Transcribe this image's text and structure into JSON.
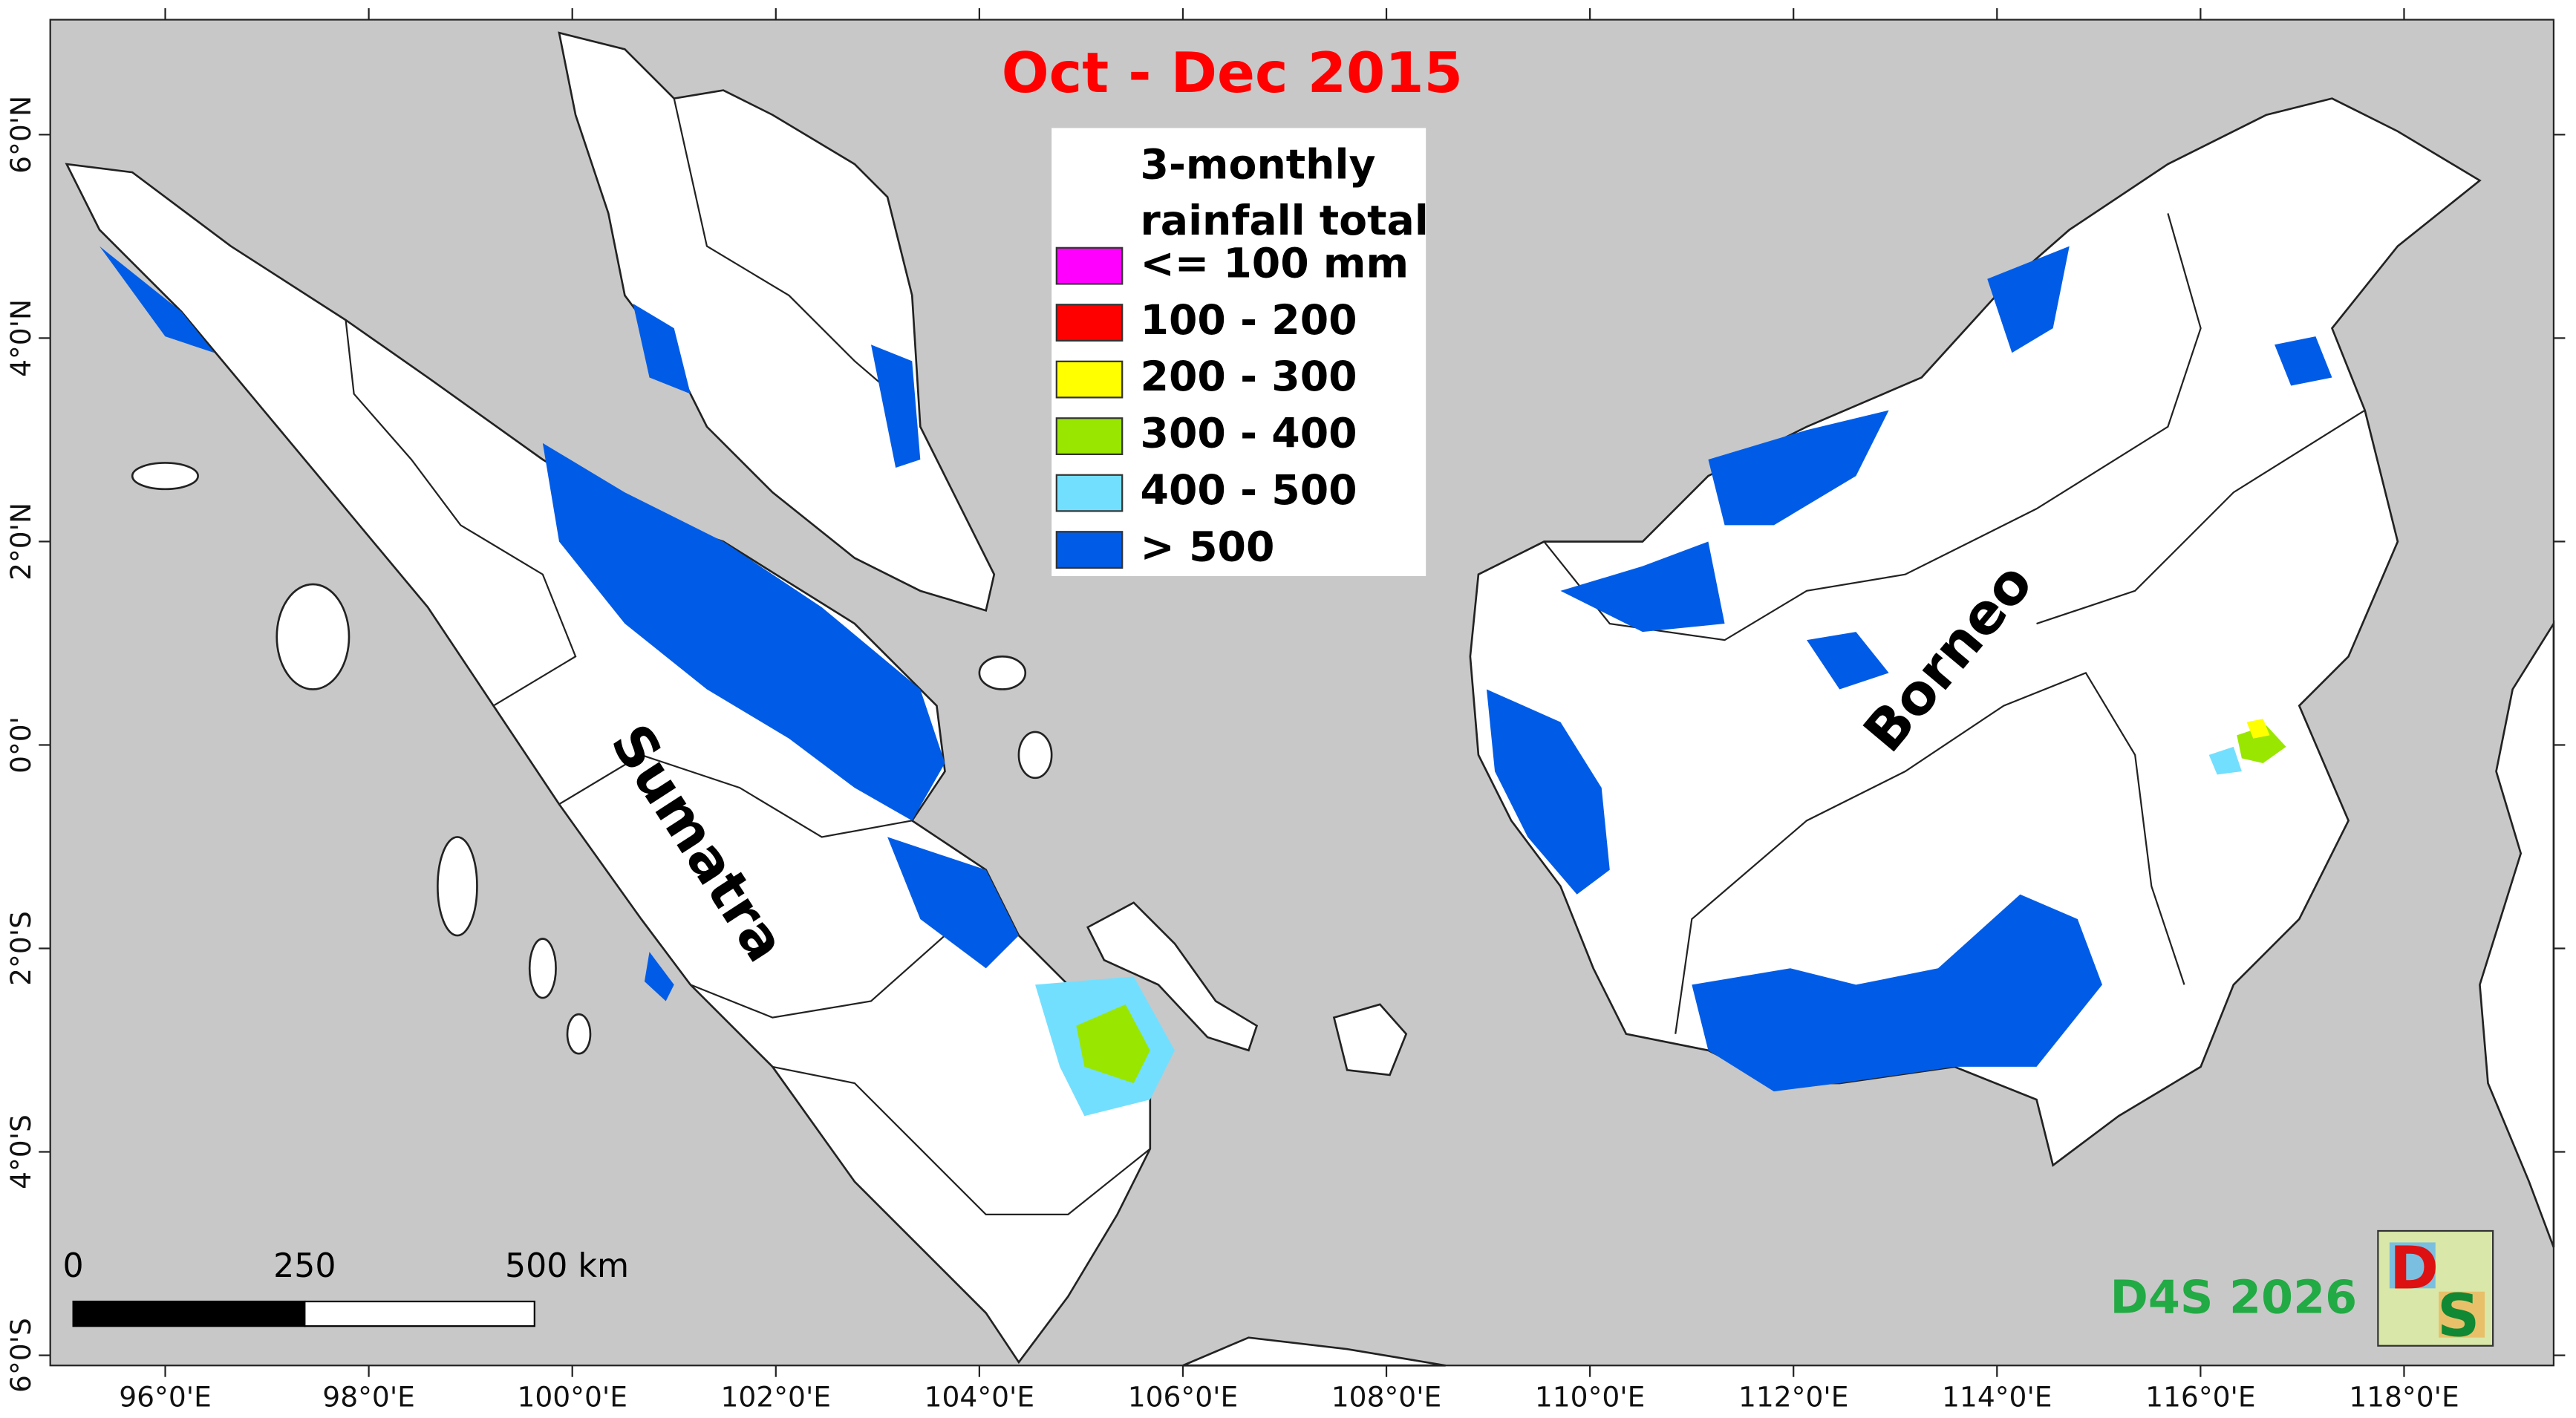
{
  "title": "Oct - Dec 2015",
  "legend": {
    "title": [
      "3-monthly",
      "rainfall total"
    ],
    "items": [
      {
        "label": "<= 100 mm",
        "color": "#ff00ff"
      },
      {
        "label": "100 - 200",
        "color": "#ff0000"
      },
      {
        "label": "200 - 300",
        "color": "#ffff00"
      },
      {
        "label": "300 - 400",
        "color": "#99e600"
      },
      {
        "label": "400 - 500",
        "color": "#73dfff"
      },
      {
        "label": "> 500",
        "color": "#005ce6"
      }
    ]
  },
  "xlim": [
    94.87,
    119.47
  ],
  "ylim": [
    -6.1,
    7.13
  ],
  "xticks": [
    {
      "value": 96,
      "label": "96°0'E"
    },
    {
      "value": 98,
      "label": "98°0'E"
    },
    {
      "value": 100,
      "label": "100°0'E"
    },
    {
      "value": 102,
      "label": "102°0'E"
    },
    {
      "value": 104,
      "label": "104°0'E"
    },
    {
      "value": 106,
      "label": "106°0'E"
    },
    {
      "value": 108,
      "label": "108°0'E"
    },
    {
      "value": 110,
      "label": "110°0'E"
    },
    {
      "value": 112,
      "label": "112°0'E"
    },
    {
      "value": 114,
      "label": "114°0'E"
    },
    {
      "value": 116,
      "label": "116°0'E"
    },
    {
      "value": 118,
      "label": "118°0'E"
    }
  ],
  "yticks": [
    {
      "value": 6,
      "label": "6°0'N"
    },
    {
      "value": 4,
      "label": "4°0'N"
    },
    {
      "value": 2,
      "label": "2°0'N"
    },
    {
      "value": 0,
      "label": "0°0'"
    },
    {
      "value": -2,
      "label": "2°0'S"
    },
    {
      "value": -4,
      "label": "4°0'S"
    },
    {
      "value": -6,
      "label": "6°0'S"
    }
  ],
  "labels": {
    "sumatra": "Sumatra",
    "borneo": "Borneo"
  },
  "scale_bar": {
    "ticks": [
      "0",
      "250",
      "500 km"
    ]
  },
  "credit": "D4S 2026",
  "logo": [
    "D",
    "S"
  ]
}
